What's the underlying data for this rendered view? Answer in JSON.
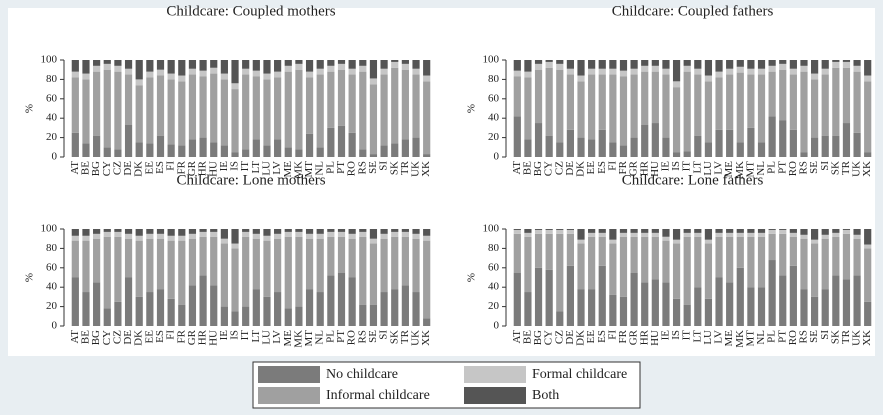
{
  "chart_data": [
    {
      "type": "stacked_bar",
      "title": "Childcare: Coupled mothers",
      "ylabel": "%",
      "categories": [
        "AT",
        "BE",
        "BG",
        "CY",
        "CZ",
        "DE",
        "DK",
        "EE",
        "ES",
        "FI",
        "FR",
        "GR",
        "HR",
        "HU",
        "IE",
        "IS",
        "IT",
        "LT",
        "LU",
        "LV",
        "ME",
        "MK",
        "MT",
        "NL",
        "PL",
        "PT",
        "RO",
        "RS",
        "SE",
        "SI",
        "SK",
        "TR",
        "UK",
        "XK"
      ],
      "ylim": [
        0,
        100
      ],
      "yticks": [
        0,
        20,
        40,
        60,
        80,
        100
      ],
      "series": [
        {
          "name": "No childcare",
          "color": "#7b7b7b",
          "values": [
            25,
            14,
            22,
            10,
            8,
            33,
            15,
            14,
            22,
            13,
            12,
            18,
            20,
            15,
            12,
            5,
            8,
            18,
            12,
            18,
            10,
            8,
            24,
            10,
            30,
            32,
            25,
            8,
            3,
            12,
            14,
            18,
            20,
            3
          ]
        },
        {
          "name": "Informal childcare",
          "color": "#a0a0a0",
          "values": [
            57,
            66,
            66,
            80,
            80,
            52,
            59,
            68,
            62,
            67,
            66,
            67,
            63,
            71,
            68,
            65,
            77,
            65,
            68,
            64,
            78,
            82,
            58,
            75,
            58,
            58,
            60,
            80,
            72,
            73,
            78,
            72,
            65,
            75
          ]
        },
        {
          "name": "Formal childcare",
          "color": "#c6c6c6",
          "values": [
            6,
            6,
            6,
            6,
            6,
            6,
            6,
            6,
            6,
            6,
            6,
            6,
            6,
            6,
            6,
            6,
            6,
            6,
            6,
            6,
            6,
            6,
            6,
            6,
            6,
            6,
            6,
            6,
            6,
            6,
            6,
            6,
            6,
            6
          ]
        },
        {
          "name": "Both",
          "color": "#555555",
          "values": [
            12,
            14,
            6,
            4,
            6,
            9,
            20,
            12,
            10,
            14,
            16,
            9,
            11,
            8,
            14,
            24,
            9,
            11,
            14,
            12,
            6,
            4,
            12,
            9,
            6,
            4,
            9,
            6,
            19,
            9,
            2,
            4,
            9,
            16
          ]
        }
      ]
    },
    {
      "type": "stacked_bar",
      "title": "Childcare: Coupled fathers",
      "ylabel": "%",
      "categories": [
        "AT",
        "BE",
        "BG",
        "CY",
        "CZ",
        "DE",
        "DK",
        "EE",
        "ES",
        "FI",
        "FR",
        "GR",
        "HR",
        "HU",
        "IE",
        "IS",
        "IT",
        "LT",
        "LU",
        "LV",
        "ME",
        "MK",
        "MT",
        "NL",
        "PL",
        "PT",
        "RO",
        "RS",
        "SE",
        "SI",
        "SK",
        "TR",
        "UK",
        "XK"
      ],
      "ylim": [
        0,
        100
      ],
      "yticks": [
        0,
        20,
        40,
        60,
        80,
        100
      ],
      "series": [
        {
          "name": "No childcare",
          "color": "#7b7b7b",
          "values": [
            42,
            18,
            35,
            22,
            15,
            28,
            20,
            18,
            28,
            15,
            12,
            20,
            33,
            35,
            20,
            5,
            6,
            22,
            15,
            28,
            28,
            15,
            30,
            15,
            42,
            38,
            28,
            5,
            20,
            22,
            22,
            35,
            25,
            5
          ]
        },
        {
          "name": "Informal childcare",
          "color": "#a0a0a0",
          "values": [
            41,
            64,
            55,
            70,
            75,
            57,
            58,
            67,
            57,
            70,
            71,
            65,
            55,
            53,
            65,
            67,
            82,
            63,
            63,
            54,
            57,
            72,
            55,
            70,
            46,
            52,
            57,
            83,
            60,
            63,
            70,
            57,
            63,
            73
          ]
        },
        {
          "name": "Formal childcare",
          "color": "#c6c6c6",
          "values": [
            6,
            6,
            6,
            6,
            6,
            6,
            6,
            6,
            6,
            6,
            6,
            6,
            6,
            6,
            6,
            6,
            6,
            6,
            6,
            6,
            6,
            6,
            6,
            6,
            6,
            6,
            6,
            6,
            6,
            6,
            6,
            6,
            6,
            6
          ]
        },
        {
          "name": "Both",
          "color": "#555555",
          "values": [
            11,
            12,
            4,
            2,
            4,
            9,
            16,
            9,
            9,
            9,
            11,
            9,
            6,
            6,
            9,
            22,
            6,
            9,
            16,
            12,
            9,
            7,
            9,
            9,
            6,
            4,
            9,
            6,
            14,
            9,
            2,
            2,
            6,
            16
          ]
        }
      ]
    },
    {
      "type": "stacked_bar",
      "title": "Childcare: Lone mothers",
      "ylabel": "%",
      "categories": [
        "AT",
        "BE",
        "BG",
        "CY",
        "CZ",
        "DE",
        "DK",
        "EE",
        "ES",
        "FI",
        "FR",
        "GR",
        "HR",
        "HU",
        "IE",
        "IS",
        "IT",
        "LT",
        "LU",
        "LV",
        "ME",
        "MK",
        "MT",
        "NL",
        "PL",
        "PT",
        "RO",
        "RS",
        "SE",
        "SI",
        "SK",
        "TR",
        "UK",
        "XK"
      ],
      "ylim": [
        0,
        100
      ],
      "yticks": [
        0,
        20,
        40,
        60,
        80,
        100
      ],
      "series": [
        {
          "name": "No childcare",
          "color": "#7b7b7b",
          "values": [
            50,
            35,
            45,
            18,
            25,
            50,
            30,
            35,
            38,
            28,
            22,
            42,
            52,
            42,
            20,
            15,
            20,
            38,
            30,
            35,
            18,
            20,
            38,
            35,
            52,
            55,
            50,
            22,
            22,
            35,
            38,
            42,
            35,
            8
          ]
        },
        {
          "name": "Informal childcare",
          "color": "#a0a0a0",
          "values": [
            38,
            53,
            45,
            74,
            67,
            40,
            58,
            55,
            52,
            60,
            66,
            48,
            40,
            50,
            65,
            65,
            72,
            52,
            58,
            55,
            74,
            72,
            52,
            55,
            40,
            37,
            40,
            70,
            63,
            55,
            54,
            50,
            55,
            80
          ]
        },
        {
          "name": "Formal childcare",
          "color": "#c6c6c6",
          "values": [
            5,
            5,
            5,
            5,
            5,
            5,
            5,
            5,
            5,
            5,
            5,
            5,
            5,
            5,
            5,
            5,
            5,
            5,
            5,
            5,
            5,
            5,
            5,
            5,
            5,
            5,
            5,
            5,
            5,
            5,
            5,
            5,
            5,
            5
          ]
        },
        {
          "name": "Both",
          "color": "#555555",
          "values": [
            7,
            7,
            5,
            3,
            3,
            5,
            7,
            5,
            5,
            7,
            7,
            5,
            3,
            3,
            10,
            15,
            3,
            5,
            7,
            5,
            3,
            3,
            5,
            5,
            3,
            3,
            5,
            3,
            10,
            5,
            3,
            3,
            5,
            7
          ]
        }
      ]
    },
    {
      "type": "stacked_bar",
      "title": "Childcare: Lone fathers",
      "ylabel": "%",
      "categories": [
        "AT",
        "BE",
        "BG",
        "CY",
        "CZ",
        "DE",
        "DK",
        "EE",
        "ES",
        "FI",
        "FR",
        "GR",
        "HR",
        "HU",
        "IE",
        "IS",
        "IT",
        "LT",
        "LU",
        "LV",
        "ME",
        "MK",
        "MT",
        "NL",
        "PL",
        "PT",
        "RO",
        "RS",
        "SE",
        "SI",
        "SK",
        "TR",
        "UK",
        "XK"
      ],
      "ylim": [
        0,
        100
      ],
      "yticks": [
        0,
        20,
        40,
        60,
        80,
        100
      ],
      "series": [
        {
          "name": "No childcare",
          "color": "#7b7b7b",
          "values": [
            55,
            35,
            60,
            58,
            15,
            62,
            38,
            38,
            62,
            32,
            30,
            55,
            45,
            48,
            45,
            28,
            22,
            40,
            28,
            50,
            45,
            60,
            40,
            40,
            68,
            52,
            62,
            38,
            30,
            38,
            52,
            48,
            52,
            25
          ]
        },
        {
          "name": "Informal childcare",
          "color": "#a0a0a0",
          "values": [
            40,
            57,
            35,
            37,
            80,
            33,
            47,
            54,
            30,
            53,
            62,
            37,
            47,
            44,
            43,
            57,
            70,
            52,
            57,
            42,
            47,
            32,
            52,
            52,
            27,
            43,
            30,
            52,
            55,
            52,
            40,
            47,
            38,
            55
          ]
        },
        {
          "name": "Formal childcare",
          "color": "#c6c6c6",
          "values": [
            4,
            4,
            4,
            4,
            4,
            4,
            4,
            4,
            4,
            4,
            4,
            4,
            4,
            4,
            4,
            4,
            4,
            4,
            4,
            4,
            4,
            4,
            4,
            4,
            4,
            4,
            4,
            4,
            4,
            4,
            4,
            4,
            4,
            4
          ]
        },
        {
          "name": "Both",
          "color": "#555555",
          "values": [
            1,
            4,
            1,
            1,
            1,
            1,
            11,
            4,
            4,
            11,
            4,
            4,
            4,
            4,
            8,
            11,
            4,
            4,
            11,
            4,
            4,
            4,
            4,
            4,
            1,
            1,
            4,
            6,
            11,
            6,
            4,
            1,
            6,
            16
          ]
        }
      ]
    }
  ]
}
